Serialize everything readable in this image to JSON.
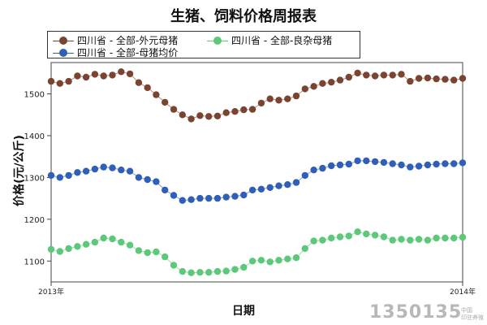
{
  "chart_data": {
    "type": "line",
    "title": "生猪、饲料价格周报表",
    "xlabel": "日期",
    "ylabel": "价格(元/公斤)",
    "x_tick_labels": [
      "2013年",
      "2014年"
    ],
    "y_ticks": [
      1100,
      1200,
      1300,
      1400,
      1500
    ],
    "ylim": [
      1050,
      1575
    ],
    "legend_position": "top-left",
    "grid": false,
    "series": [
      {
        "name": "四川省 - 全部-外元母猪",
        "color": "#7b4431",
        "values": [
          1530,
          1525,
          1530,
          1543,
          1540,
          1547,
          1543,
          1545,
          1553,
          1548,
          1527,
          1515,
          1498,
          1480,
          1463,
          1450,
          1440,
          1448,
          1446,
          1447,
          1455,
          1458,
          1462,
          1463,
          1478,
          1488,
          1485,
          1488,
          1495,
          1512,
          1518,
          1525,
          1528,
          1533,
          1540,
          1550,
          1545,
          1543,
          1545,
          1545,
          1547,
          1530,
          1537,
          1538,
          1536,
          1535,
          1533,
          1537
        ]
      },
      {
        "name": "四川省 - 全部-母猪均价",
        "color": "#2f5fb8",
        "values": [
          1305,
          1300,
          1305,
          1312,
          1315,
          1320,
          1325,
          1323,
          1318,
          1315,
          1300,
          1295,
          1290,
          1270,
          1257,
          1245,
          1247,
          1250,
          1250,
          1250,
          1253,
          1255,
          1258,
          1270,
          1272,
          1276,
          1280,
          1283,
          1288,
          1305,
          1318,
          1322,
          1328,
          1330,
          1332,
          1340,
          1340,
          1338,
          1336,
          1333,
          1330,
          1325,
          1327,
          1330,
          1332,
          1333,
          1333,
          1335
        ]
      },
      {
        "name": "四川省 - 全部-良杂母猪",
        "color": "#5cc87a",
        "values": [
          1128,
          1123,
          1130,
          1135,
          1140,
          1145,
          1155,
          1153,
          1145,
          1138,
          1125,
          1120,
          1122,
          1110,
          1090,
          1075,
          1072,
          1073,
          1073,
          1075,
          1076,
          1080,
          1085,
          1100,
          1102,
          1098,
          1102,
          1105,
          1108,
          1130,
          1148,
          1150,
          1155,
          1158,
          1160,
          1170,
          1165,
          1162,
          1158,
          1150,
          1152,
          1150,
          1152,
          1150,
          1155,
          1155,
          1155,
          1157
        ]
      }
    ]
  },
  "watermark": {
    "text": "1350135",
    "sub_line1": "中国",
    "sub_line2": "印驻养殖"
  }
}
